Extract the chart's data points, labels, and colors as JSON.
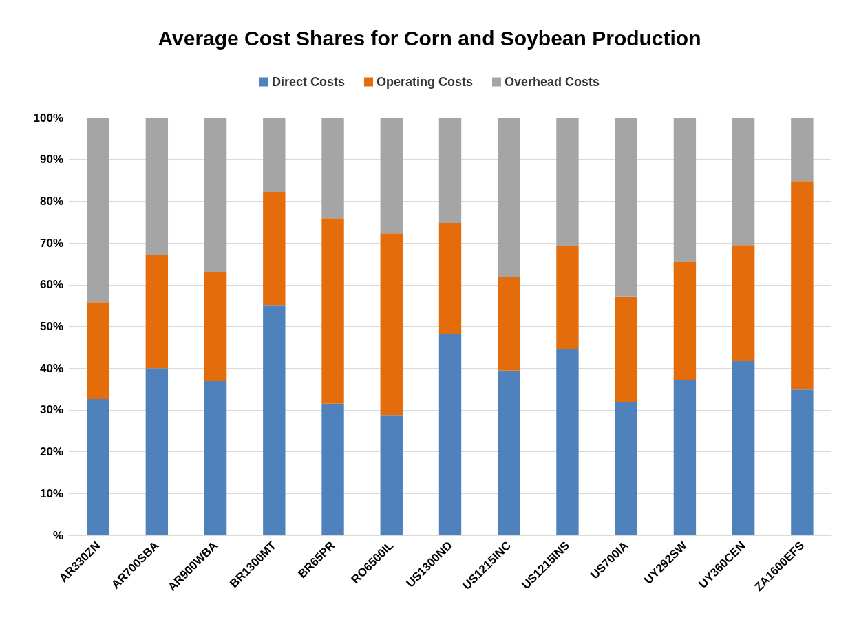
{
  "chart_data": {
    "type": "bar",
    "title": "Average Cost Shares for Corn and Soybean Production",
    "stacked": true,
    "legend": "top",
    "grid": "y",
    "categories": [
      "AR330ZN",
      "AR700SBA",
      "AR900WBA",
      "BR1300MT",
      "BR65PR",
      "RO6500IL",
      "US1300ND",
      "US1215INC",
      "US1215INS",
      "US700IA",
      "UY292SW",
      "UY360CEN",
      "ZA1600EFS"
    ],
    "series": [
      {
        "name": "Direct Costs",
        "color": "#4f81bd",
        "values": [
          32.6,
          40.0,
          36.9,
          55.0,
          31.5,
          28.8,
          48.1,
          39.4,
          44.6,
          31.8,
          37.2,
          41.7,
          34.9
        ]
      },
      {
        "name": "Operating Costs",
        "color": "#e46c0a",
        "values": [
          23.2,
          27.2,
          26.2,
          27.2,
          44.4,
          43.5,
          26.7,
          22.5,
          24.6,
          25.4,
          28.2,
          27.8,
          49.9
        ]
      },
      {
        "name": "Overhead Costs",
        "color": "#a5a5a5",
        "values": [
          44.2,
          32.8,
          36.9,
          17.8,
          24.1,
          27.7,
          25.2,
          38.1,
          30.8,
          42.8,
          34.6,
          30.5,
          15.2
        ]
      }
    ],
    "ylim": [
      0,
      100
    ],
    "yticks": [
      {
        "value": 0,
        "label": "%"
      },
      {
        "value": 10,
        "label": "10%"
      },
      {
        "value": 20,
        "label": "20%"
      },
      {
        "value": 30,
        "label": "30%"
      },
      {
        "value": 40,
        "label": "40%"
      },
      {
        "value": 50,
        "label": "50%"
      },
      {
        "value": 60,
        "label": "60%"
      },
      {
        "value": 70,
        "label": "70%"
      },
      {
        "value": 80,
        "label": "80%"
      },
      {
        "value": 90,
        "label": "90%"
      },
      {
        "value": 100,
        "label": "100%"
      }
    ]
  }
}
